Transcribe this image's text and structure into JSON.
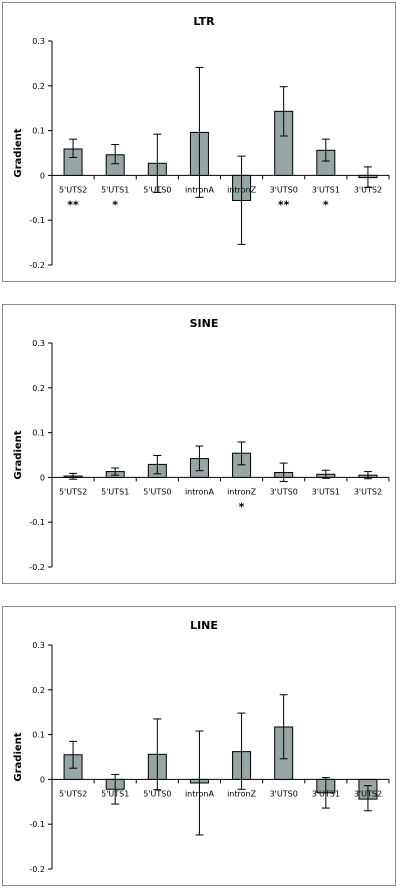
{
  "chart_data": [
    {
      "type": "bar",
      "title": "LTR",
      "ylabel": "Gradient",
      "ylim": [
        -0.2,
        0.3
      ],
      "yticks": [
        "0.3",
        "0.2",
        "0.1",
        "0",
        "-0.1",
        "-0.2"
      ],
      "categories": [
        "5'UTS2",
        "5'UTS1",
        "5'UTS0",
        "intronA",
        "intronZ",
        "3'UTS0",
        "3'UTS1",
        "3'UTS2"
      ],
      "values": [
        0.059,
        0.046,
        0.027,
        0.096,
        -0.056,
        0.143,
        0.056,
        -0.005
      ],
      "err_low": [
        0.04,
        0.026,
        -0.038,
        -0.049,
        -0.154,
        0.088,
        0.032,
        -0.027
      ],
      "err_high": [
        0.081,
        0.069,
        0.092,
        0.241,
        0.043,
        0.198,
        0.081,
        0.019
      ],
      "significance": [
        "**",
        "*",
        "",
        "",
        "",
        "**",
        "*",
        ""
      ]
    },
    {
      "type": "bar",
      "title": "SINE",
      "ylabel": "Gradient",
      "ylim": [
        -0.2,
        0.3
      ],
      "yticks": [
        "0.3",
        "0.2",
        "0.1",
        "0",
        "-0.1",
        "-0.2"
      ],
      "categories": [
        "5'UTS2",
        "5'UTS1",
        "5'UTS0",
        "intronA",
        "intronZ",
        "3'UTS0",
        "3'UTS1",
        "3'UTS2"
      ],
      "values": [
        0.003,
        0.013,
        0.029,
        0.042,
        0.054,
        0.011,
        0.007,
        0.005
      ],
      "err_low": [
        -0.004,
        0.005,
        0.008,
        0.015,
        0.028,
        -0.009,
        -0.002,
        -0.003
      ],
      "err_high": [
        0.009,
        0.021,
        0.049,
        0.07,
        0.079,
        0.032,
        0.016,
        0.013
      ],
      "significance": [
        "",
        "",
        "",
        "",
        "*",
        "",
        "",
        ""
      ]
    },
    {
      "type": "bar",
      "title": "LINE",
      "ylabel": "Gradient",
      "ylim": [
        -0.2,
        0.3
      ],
      "yticks": [
        "0.3",
        "0.2",
        "0.1",
        "0",
        "-0.1",
        "-0.2"
      ],
      "categories": [
        "5'UTS2",
        "5'UTS1",
        "5'UTS0",
        "intronA",
        "intronZ",
        "3'UTS0",
        "3'UTS1",
        "3'UTS2"
      ],
      "values": [
        0.055,
        -0.022,
        0.056,
        -0.008,
        0.062,
        0.117,
        -0.03,
        -0.044
      ],
      "err_low": [
        0.025,
        -0.055,
        -0.023,
        -0.124,
        -0.022,
        0.046,
        -0.064,
        -0.07
      ],
      "err_high": [
        0.085,
        0.011,
        0.135,
        0.108,
        0.148,
        0.189,
        0.004,
        -0.014
      ],
      "significance": [
        "",
        "",
        "",
        "",
        "",
        "",
        "",
        ""
      ]
    }
  ]
}
